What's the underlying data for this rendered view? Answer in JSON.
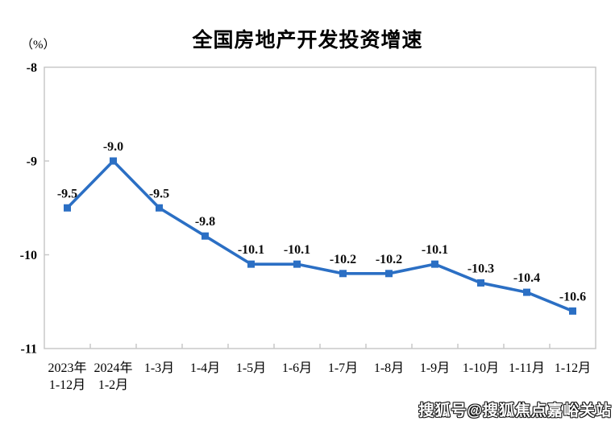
{
  "chart_data": {
    "type": "line",
    "title": "全国房地产开发投资增速",
    "unit_label": "（%）",
    "categories": [
      [
        "2023年",
        "1-12月"
      ],
      [
        "2024年",
        "1-2月"
      ],
      [
        "1-3月"
      ],
      [
        "1-4月"
      ],
      [
        "1-5月"
      ],
      [
        "1-6月"
      ],
      [
        "1-7月"
      ],
      [
        "1-8月"
      ],
      [
        "1-9月"
      ],
      [
        "1-10月"
      ],
      [
        "1-11月"
      ],
      [
        "1-12月"
      ]
    ],
    "values": [
      -9.5,
      -9.0,
      -9.5,
      -9.8,
      -10.1,
      -10.1,
      -10.2,
      -10.2,
      -10.1,
      -10.3,
      -10.4,
      -10.6
    ],
    "data_labels": [
      "-9.5",
      "-9.0",
      "-9.5",
      "-9.8",
      "-10.1",
      "-10.1",
      "-10.2",
      "-10.2",
      "-10.1",
      "-10.3",
      "-10.4",
      "-10.6"
    ],
    "ylim": [
      -11,
      -8
    ],
    "ytick_labels": [
      "-8",
      "-9",
      "-10",
      "-11"
    ],
    "ytick_values": [
      -8,
      -9,
      -10,
      -11
    ],
    "grid": false,
    "legend_position": "none",
    "line_color": "#2B6FC4",
    "axis_color": "#c8c8c8",
    "label_color": "#0d0d0d"
  },
  "watermark": {
    "text": "搜狐号@搜狐焦点嘉峪关站"
  }
}
